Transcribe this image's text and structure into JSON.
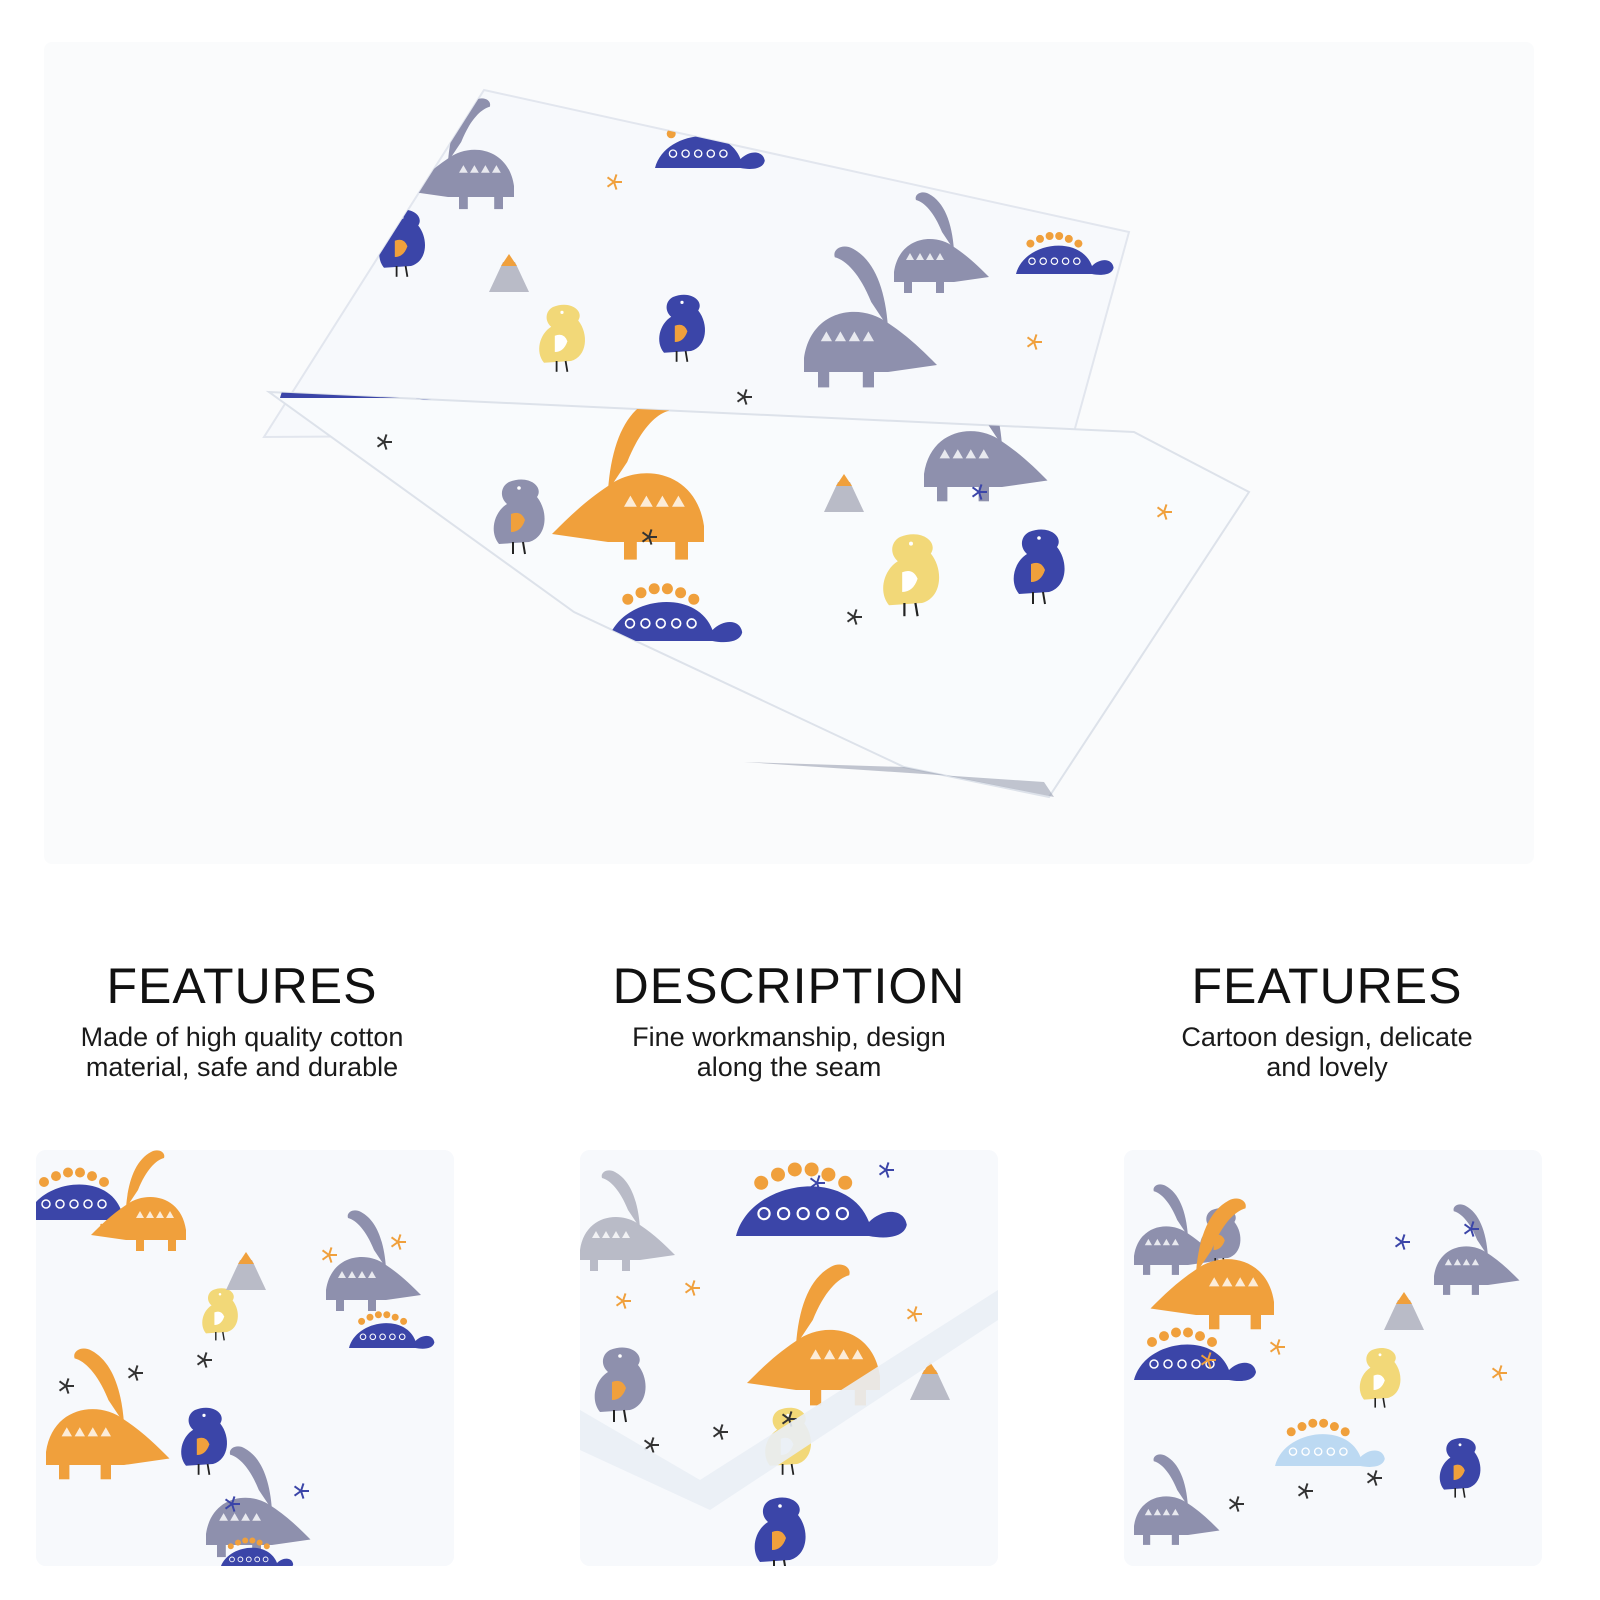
{
  "colors": {
    "navy": "#3b45a8",
    "orange": "#f0a03c",
    "gray": "#8e90ad",
    "lightgray": "#b9bbc7",
    "yellow": "#f2d878",
    "lightblue": "#bcd9f2",
    "fabric": "#f7f9fc"
  },
  "hero": {
    "image": "dinosaur-print-fabric-photo"
  },
  "sections": [
    {
      "title": "FEATURES",
      "text": "Made of high quality cotton\nmaterial, safe and durable"
    },
    {
      "title": "DESCRIPTION",
      "text": "Fine workmanship, design\nalong the seam"
    },
    {
      "title": "FEATURES",
      "text": "Cartoon design, delicate\nand lovely"
    }
  ],
  "thumbnails": [
    {
      "image": "fabric-corner-closeup"
    },
    {
      "image": "fabric-seam-closeup"
    },
    {
      "image": "fabric-pattern-closeup"
    }
  ]
}
